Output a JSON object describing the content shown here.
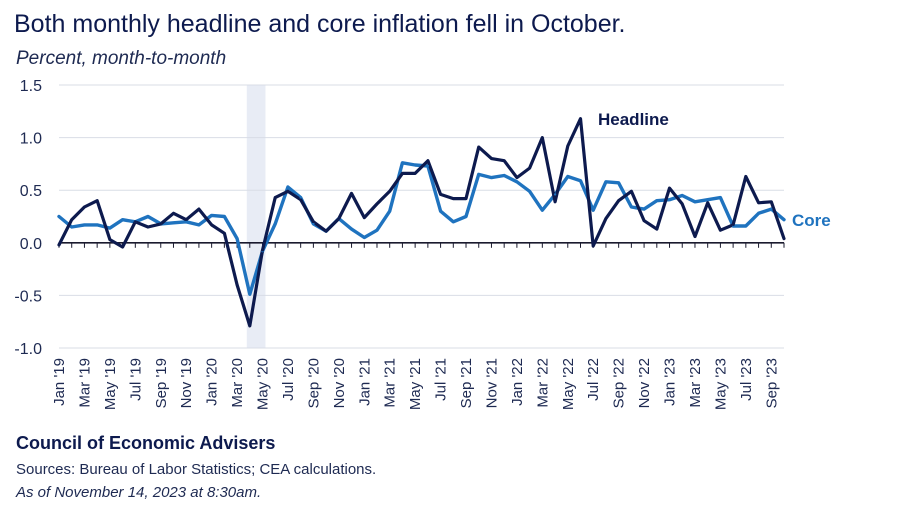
{
  "header": {
    "title": "Both monthly headline and core inflation fell in October.",
    "subtitle": "Percent, month-to-month"
  },
  "footer": {
    "organization": "Council of Economic Advisers",
    "sources": "Sources: Bureau of Labor Statistics; CEA calculations.",
    "as_of": "As of November 14, 2023 at 8:30am."
  },
  "colors": {
    "headline": "#0d1a4e",
    "core": "#1f73bf",
    "recession_shade": "#e8ecf5",
    "gridline": "#d9dde6",
    "text": "#0d1a4e"
  },
  "chart_data": {
    "type": "line",
    "title": "Both monthly headline and core inflation fell in October.",
    "ylabel": "Percent, month-to-month",
    "ylim": [
      -1.0,
      1.5
    ],
    "yticks": [
      -1.0,
      -0.5,
      0.0,
      0.5,
      1.0,
      1.5
    ],
    "ytick_labels": [
      "-1.0",
      "-0.5",
      "0.0",
      "0.5",
      "1.0",
      "1.5"
    ],
    "grid": true,
    "shaded_period": {
      "start": "Apr '20",
      "end": "May '20"
    },
    "x": [
      "Jan '19",
      "Feb '19",
      "Mar '19",
      "Apr '19",
      "May '19",
      "Jun '19",
      "Jul '19",
      "Aug '19",
      "Sep '19",
      "Oct '19",
      "Nov '19",
      "Dec '19",
      "Jan '20",
      "Feb '20",
      "Mar '20",
      "Apr '20",
      "May '20",
      "Jun '20",
      "Jul '20",
      "Aug '20",
      "Sep '20",
      "Oct '20",
      "Nov '20",
      "Dec '20",
      "Jan '21",
      "Feb '21",
      "Mar '21",
      "Apr '21",
      "May '21",
      "Jun '21",
      "Jul '21",
      "Aug '21",
      "Sep '21",
      "Oct '21",
      "Nov '21",
      "Dec '21",
      "Jan '22",
      "Feb '22",
      "Mar '22",
      "Apr '22",
      "May '22",
      "Jun '22",
      "Jul '22",
      "Aug '22",
      "Sep '22",
      "Oct '22",
      "Nov '22",
      "Dec '22",
      "Jan '23",
      "Feb '23",
      "Mar '23",
      "Apr '23",
      "May '23",
      "Jun '23",
      "Jul '23",
      "Aug '23",
      "Sep '23",
      "Oct '23"
    ],
    "tick_labels": [
      "Jan '19",
      "Mar '19",
      "May '19",
      "Jul '19",
      "Sep '19",
      "Nov '19",
      "Jan '20",
      "Mar '20",
      "May '20",
      "Jul '20",
      "Sep '20",
      "Nov '20",
      "Jan '21",
      "Mar '21",
      "May '21",
      "Jul '21",
      "Sep '21",
      "Nov '21",
      "Jan '22",
      "Mar '22",
      "May '22",
      "Jul '22",
      "Sep '22",
      "Nov '22",
      "Jan '23",
      "Mar '23",
      "May '23",
      "Jul '23",
      "Sep '23"
    ],
    "series": [
      {
        "name": "Headline",
        "label_text": "Headline",
        "values": [
          -0.02,
          0.22,
          0.34,
          0.4,
          0.03,
          -0.04,
          0.2,
          0.15,
          0.18,
          0.28,
          0.22,
          0.32,
          0.17,
          0.09,
          -0.4,
          -0.79,
          -0.07,
          0.43,
          0.49,
          0.41,
          0.2,
          0.11,
          0.23,
          0.47,
          0.24,
          0.37,
          0.49,
          0.66,
          0.66,
          0.78,
          0.46,
          0.42,
          0.42,
          0.91,
          0.8,
          0.78,
          0.62,
          0.71,
          1.0,
          0.39,
          0.92,
          1.18,
          -0.03,
          0.23,
          0.4,
          0.49,
          0.21,
          0.13,
          0.52,
          0.37,
          0.06,
          0.38,
          0.12,
          0.17,
          0.63,
          0.38,
          0.39,
          0.04
        ]
      },
      {
        "name": "Core",
        "label_text": "Core",
        "values": [
          0.25,
          0.15,
          0.17,
          0.17,
          0.14,
          0.22,
          0.2,
          0.25,
          0.18,
          0.19,
          0.2,
          0.17,
          0.26,
          0.25,
          0.04,
          -0.49,
          -0.08,
          0.18,
          0.53,
          0.43,
          0.18,
          0.11,
          0.23,
          0.13,
          0.05,
          0.12,
          0.3,
          0.76,
          0.74,
          0.73,
          0.3,
          0.2,
          0.25,
          0.65,
          0.62,
          0.64,
          0.58,
          0.49,
          0.31,
          0.46,
          0.63,
          0.59,
          0.31,
          0.58,
          0.57,
          0.34,
          0.32,
          0.4,
          0.41,
          0.45,
          0.39,
          0.41,
          0.43,
          0.16,
          0.16,
          0.28,
          0.32,
          0.22
        ]
      }
    ]
  }
}
